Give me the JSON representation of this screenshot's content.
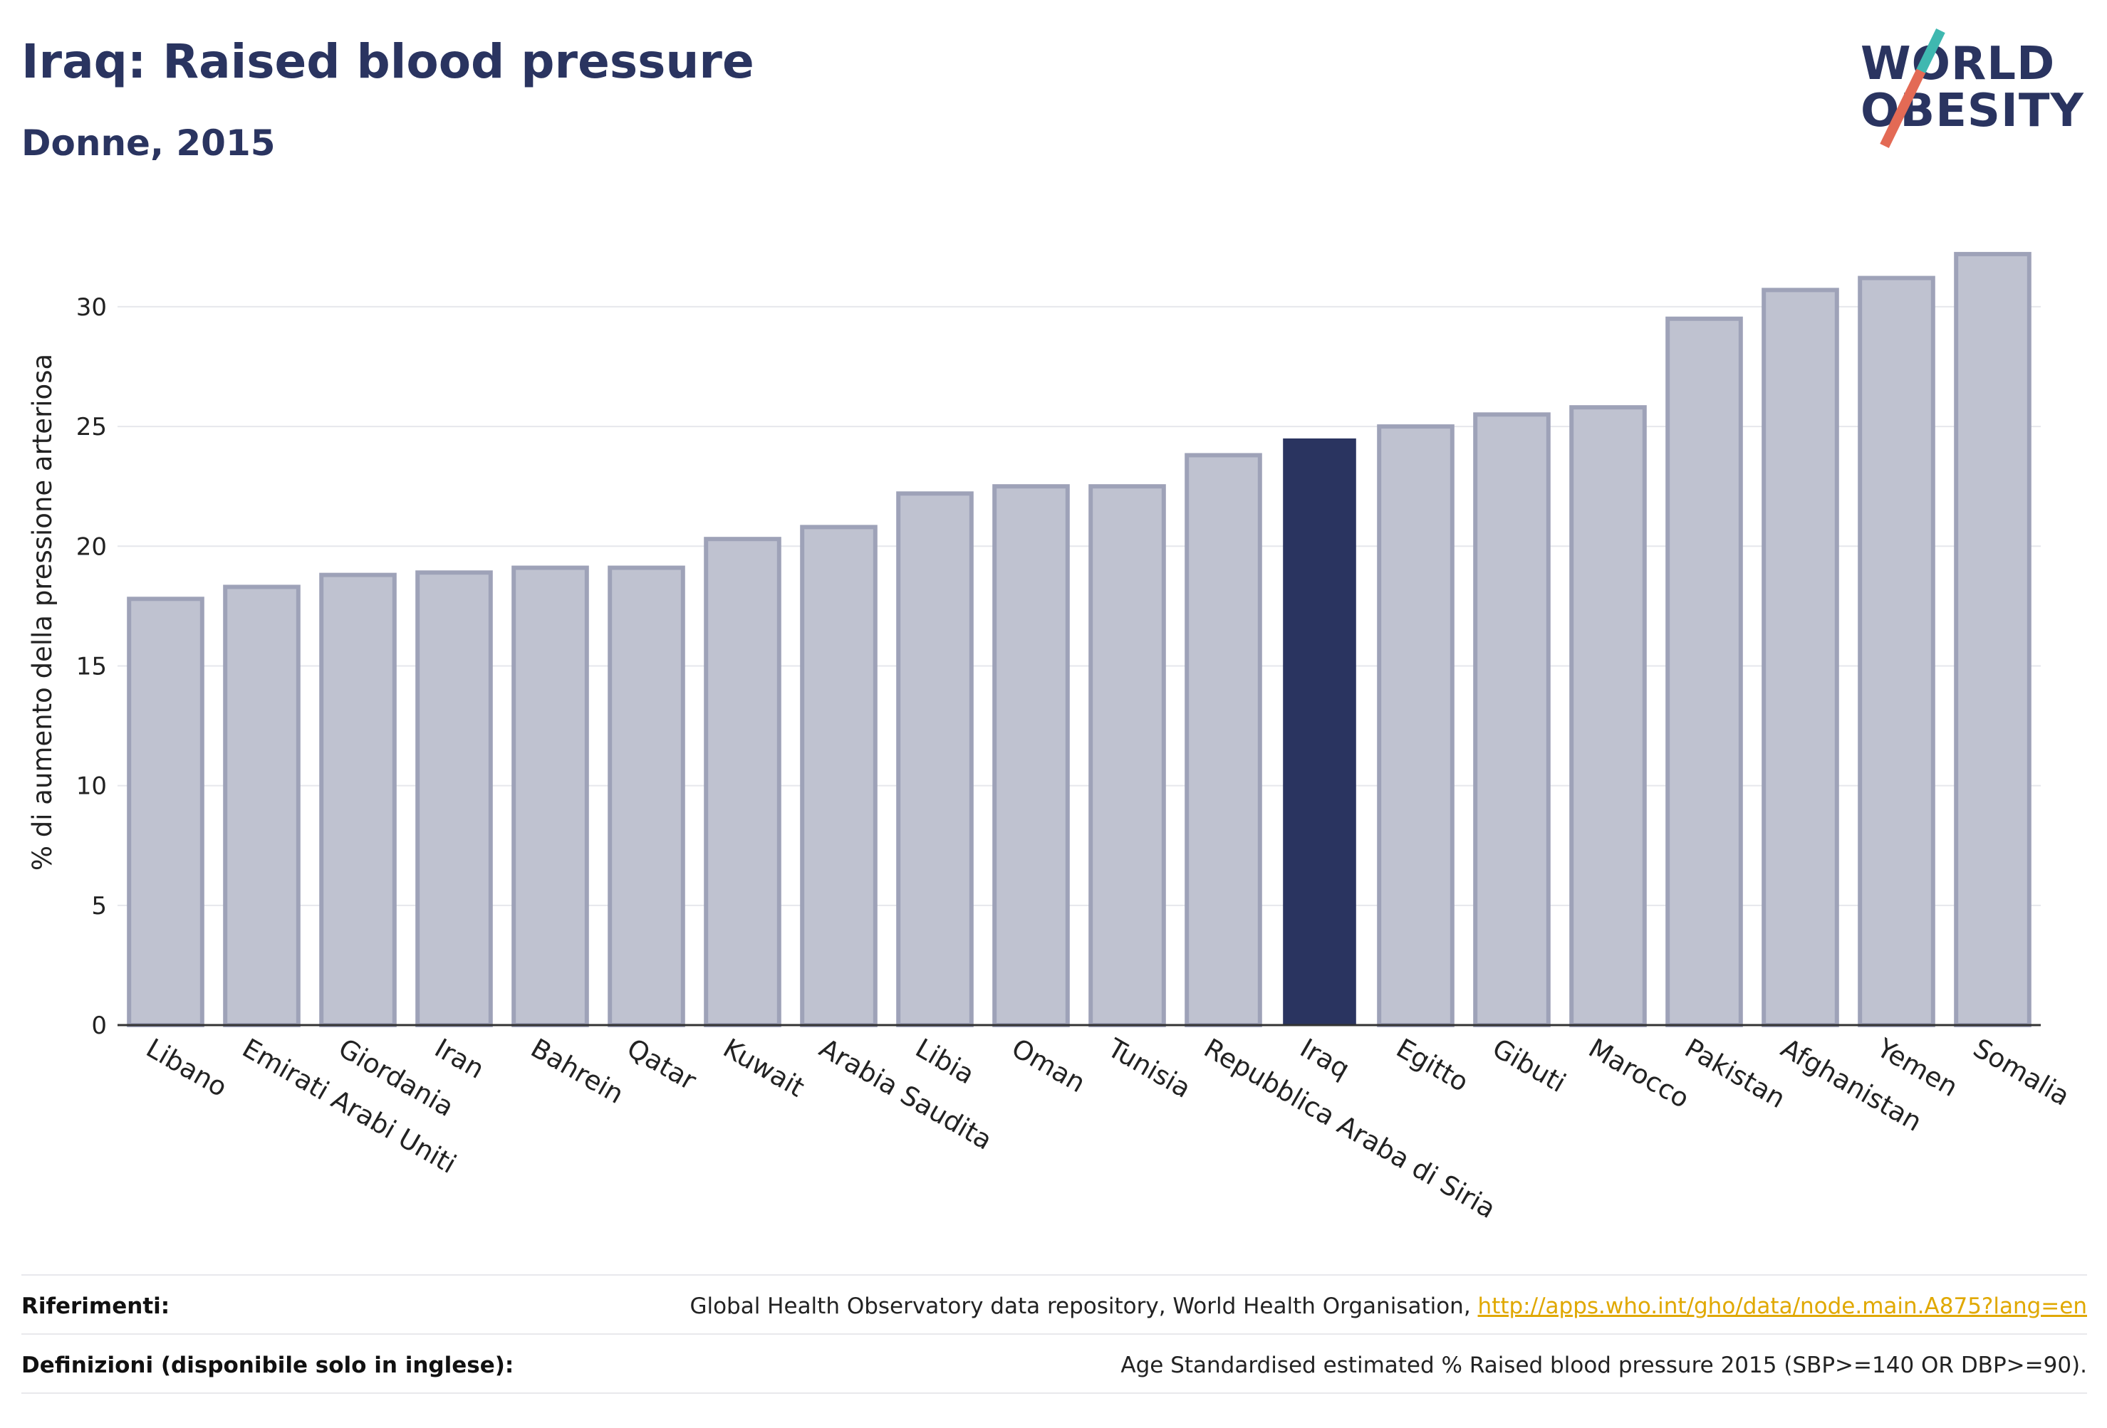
{
  "title": "Iraq: Raised blood pressure",
  "subtitle": "Donne, 2015",
  "logo": {
    "line1": "WORLD",
    "line2": "OBESITY"
  },
  "colors": {
    "highlight": "#2a3460",
    "bar": "#bfc2d0",
    "bar_border": "#9ea2b8",
    "link": "#e0a800"
  },
  "chart_data": {
    "type": "bar",
    "categories": [
      "Libano",
      "Emirati Arabi Uniti",
      "Giordania",
      "Iran",
      "Bahrein",
      "Qatar",
      "Kuwait",
      "Arabia Saudita",
      "Libia",
      "Oman",
      "Tunisia",
      "Repubblica Araba di Siria",
      "Iraq",
      "Egitto",
      "Gibuti",
      "Marocco",
      "Pakistan",
      "Afghanistan",
      "Yemen",
      "Somalia"
    ],
    "values": [
      17.8,
      18.3,
      18.8,
      18.9,
      19.1,
      19.1,
      20.3,
      20.8,
      22.2,
      22.5,
      22.5,
      23.8,
      24.5,
      25.0,
      25.5,
      25.8,
      29.5,
      30.7,
      31.2,
      32.2
    ],
    "highlight": "Iraq",
    "ylabel": "% di aumento della pressione arteriosa",
    "xlabel": "",
    "ylim": [
      0,
      33
    ],
    "yticks": [
      0,
      5,
      10,
      15,
      20,
      25,
      30
    ],
    "grid": true
  },
  "footer": {
    "references_label": "Riferimenti:",
    "references_text": "Global Health Observatory data repository, World Health Organisation, ",
    "references_link": "http://apps.who.int/gho/data/node.main.A875?lang=en",
    "definitions_label": "Definizioni (disponibile solo in inglese):",
    "definitions_text": "Age Standardised estimated % Raised blood pressure 2015 (SBP>=140 OR DBP>=90)."
  }
}
